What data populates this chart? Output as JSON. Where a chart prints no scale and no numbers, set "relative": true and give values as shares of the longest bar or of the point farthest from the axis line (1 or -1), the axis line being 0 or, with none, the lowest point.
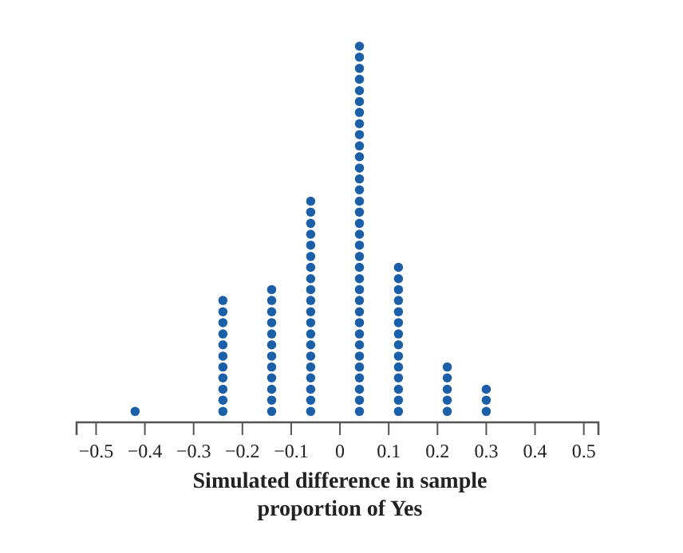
{
  "chart_data": {
    "type": "scatter",
    "xlabel": "Simulated difference in sample proportion of Yes",
    "xlim": [
      -0.54,
      0.53
    ],
    "xticks": [
      {
        "value": -0.5,
        "label": "−0.5"
      },
      {
        "value": -0.4,
        "label": "−0.4"
      },
      {
        "value": -0.3,
        "label": "−0.3"
      },
      {
        "value": -0.2,
        "label": "−0.2"
      },
      {
        "value": -0.1,
        "label": "−0.1"
      },
      0,
      0.1,
      0.2,
      0.3,
      0.4,
      0.5
    ],
    "relative": true,
    "tick_labels": "x",
    "grid": false,
    "marker": "circle",
    "series": [
      {
        "color": "#1a5fa8",
        "x": [
          -0.42,
          -0.24,
          -0.24,
          -0.24,
          -0.24,
          -0.24,
          -0.24,
          -0.24,
          -0.24,
          -0.24,
          -0.24,
          -0.24,
          -0.14,
          -0.14,
          -0.14,
          -0.14,
          -0.14,
          -0.14,
          -0.14,
          -0.14,
          -0.14,
          -0.14,
          -0.14,
          -0.14,
          -0.06,
          -0.06,
          -0.06,
          -0.06,
          -0.06,
          -0.06,
          -0.06,
          -0.06,
          -0.06,
          -0.06,
          -0.06,
          -0.06,
          -0.06,
          -0.06,
          -0.06,
          -0.06,
          -0.06,
          -0.06,
          -0.06,
          -0.06,
          0.04,
          0.04,
          0.04,
          0.04,
          0.04,
          0.04,
          0.04,
          0.04,
          0.04,
          0.04,
          0.04,
          0.04,
          0.04,
          0.04,
          0.04,
          0.04,
          0.04,
          0.04,
          0.04,
          0.04,
          0.04,
          0.04,
          0.04,
          0.04,
          0.04,
          0.04,
          0.04,
          0.04,
          0.04,
          0.04,
          0.04,
          0.04,
          0.04,
          0.04,
          0.12,
          0.12,
          0.12,
          0.12,
          0.12,
          0.12,
          0.12,
          0.12,
          0.12,
          0.12,
          0.12,
          0.12,
          0.12,
          0.12,
          0.22,
          0.22,
          0.22,
          0.22,
          0.22,
          0.3,
          0.3,
          0.3
        ],
        "values": [
          0.029,
          0.029,
          0.059,
          0.088,
          0.118,
          0.147,
          0.176,
          0.206,
          0.235,
          0.265,
          0.294,
          0.324,
          0.029,
          0.059,
          0.088,
          0.118,
          0.147,
          0.176,
          0.206,
          0.235,
          0.265,
          0.294,
          0.324,
          0.353,
          0.029,
          0.059,
          0.088,
          0.118,
          0.147,
          0.176,
          0.206,
          0.235,
          0.265,
          0.294,
          0.324,
          0.353,
          0.382,
          0.412,
          0.441,
          0.471,
          0.5,
          0.529,
          0.559,
          0.588,
          0.029,
          0.059,
          0.088,
          0.118,
          0.147,
          0.176,
          0.206,
          0.235,
          0.265,
          0.294,
          0.324,
          0.353,
          0.382,
          0.412,
          0.441,
          0.471,
          0.5,
          0.529,
          0.559,
          0.588,
          0.618,
          0.647,
          0.676,
          0.706,
          0.735,
          0.765,
          0.794,
          0.824,
          0.853,
          0.882,
          0.912,
          0.941,
          0.971,
          1,
          0.029,
          0.059,
          0.088,
          0.118,
          0.147,
          0.176,
          0.206,
          0.235,
          0.265,
          0.294,
          0.324,
          0.353,
          0.382,
          0.412,
          0.029,
          0.059,
          0.088,
          0.118,
          0.147,
          0.029,
          0.059,
          0.088
        ]
      }
    ]
  }
}
